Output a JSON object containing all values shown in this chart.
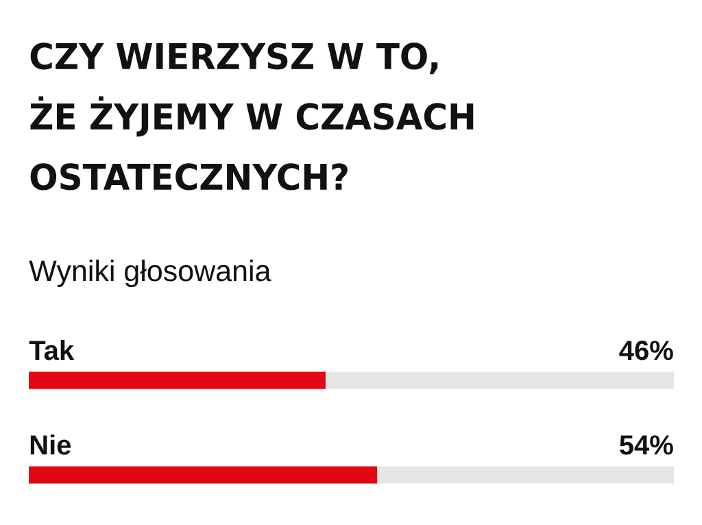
{
  "chart_data": {
    "type": "bar",
    "orientation": "horizontal",
    "title": "CZY WIERZYSZ W TO, ŻE ŻYJEMY W CZASACH OSTATECZNYCH?",
    "subtitle": "Wyniki głosowania",
    "categories": [
      "Tak",
      "Nie"
    ],
    "values": [
      46,
      54
    ],
    "value_labels": [
      "46%",
      "54%"
    ],
    "color": "#e30613",
    "xlim": [
      0,
      100
    ]
  }
}
